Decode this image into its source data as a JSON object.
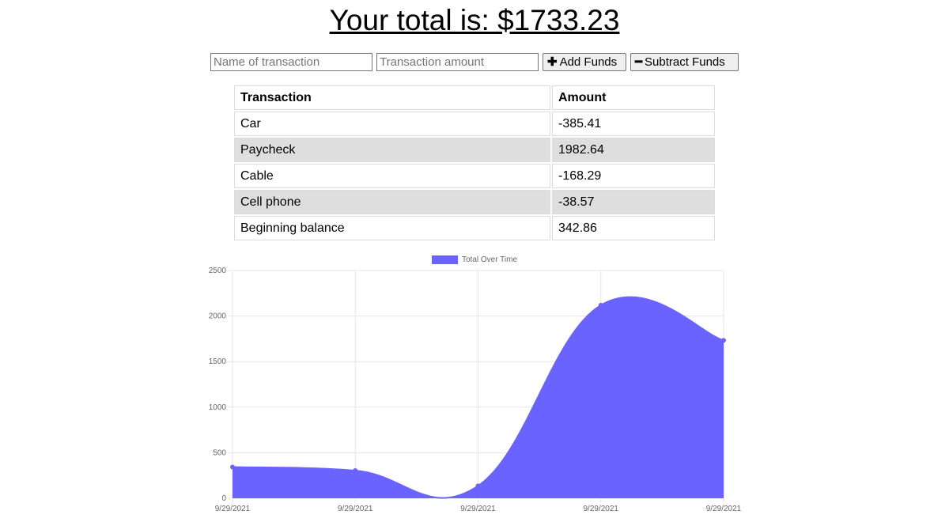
{
  "header": {
    "total_text": "Your total is: $1733.23"
  },
  "form": {
    "name_placeholder": "Name of transaction",
    "amount_placeholder": "Transaction amount",
    "add_label": "Add Funds",
    "subtract_label": "Subtract Funds",
    "add_icon": "plus-icon",
    "subtract_icon": "minus-icon"
  },
  "table": {
    "headers": [
      "Transaction",
      "Amount"
    ],
    "rows": [
      {
        "name": "Car",
        "amount": "-385.41"
      },
      {
        "name": "Paycheck",
        "amount": "1982.64"
      },
      {
        "name": "Cable",
        "amount": "-168.29"
      },
      {
        "name": "Cell phone",
        "amount": "-38.57"
      },
      {
        "name": "Beginning balance",
        "amount": "342.86"
      }
    ],
    "alt_row_color": "#dedede"
  },
  "chart_data": {
    "type": "area",
    "legend": "Total Over Time",
    "legend_position": "top-center",
    "color": "#6b63ff",
    "x": [
      "9/29/2021",
      "9/29/2021",
      "9/29/2021",
      "9/29/2021",
      "9/29/2021"
    ],
    "values": [
      342.86,
      304.29,
      136.0,
      2118.64,
      1733.23
    ],
    "ylim": [
      0,
      2500
    ],
    "yticks": [
      0,
      500,
      1000,
      1500,
      2000,
      2500
    ],
    "grid": true
  }
}
